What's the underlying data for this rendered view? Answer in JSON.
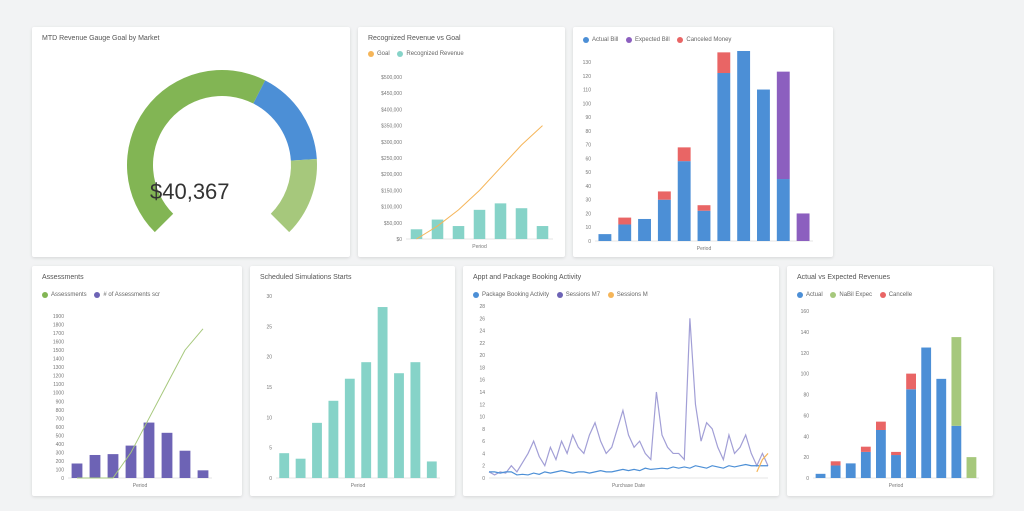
{
  "colors": {
    "green": "#82b554",
    "blue": "#4c8fd6",
    "teal": "#86d3c8",
    "purple": "#6d63b5",
    "lightpurple": "#a29fd6",
    "orange": "#f5b559",
    "red": "#e96565",
    "violet": "#8c5fbf",
    "lightgreen": "#a6c87c"
  },
  "chart_data": [
    {
      "id": "gauge",
      "type": "gauge",
      "title": "MTD Revenue Gauge Goal by Market",
      "value_text": "$40,367",
      "segments": [
        {
          "color_key": "green",
          "from": 0,
          "to": 0.6
        },
        {
          "color_key": "blue",
          "from": 0.6,
          "to": 0.82
        },
        {
          "color_key": "lightgreen",
          "from": 0.82,
          "to": 1.0
        }
      ]
    },
    {
      "id": "recognized",
      "type": "bar",
      "title": "Recognized Revenue vs Goal",
      "legend": [
        "Goal",
        "Recognized Revenue"
      ],
      "yticks": [
        "$500,000",
        "$450,000",
        "$400,000",
        "$350,000",
        "$300,000",
        "$250,000",
        "$200,000",
        "$150,000",
        "$100,000",
        "$50,000",
        "$0"
      ],
      "xlabel": "Period",
      "bars": [
        30,
        60,
        40,
        90,
        110,
        95,
        40
      ],
      "goal_line": [
        0,
        40,
        90,
        150,
        220,
        290,
        350
      ],
      "ymax": 500
    },
    {
      "id": "stacked_top",
      "type": "bar",
      "title": "",
      "legend": [
        "Actual Bill",
        "Expected Bill",
        "Canceled Money"
      ],
      "yticks": [
        "130",
        "120",
        "110",
        "100",
        "90",
        "80",
        "70",
        "60",
        "50",
        "40",
        "30",
        "20",
        "10",
        "0"
      ],
      "xlabel": "Period",
      "series": [
        {
          "name": "Actual Bill",
          "color_key": "blue",
          "values": [
            5,
            12,
            16,
            30,
            58,
            22,
            122,
            138,
            110,
            45,
            0
          ]
        },
        {
          "name": "Expected Bill",
          "color_key": "violet",
          "values": [
            0,
            0,
            0,
            0,
            0,
            0,
            0,
            0,
            0,
            78,
            20
          ]
        },
        {
          "name": "Canceled Money",
          "color_key": "red",
          "values": [
            0,
            5,
            0,
            6,
            10,
            4,
            15,
            0,
            0,
            0,
            0
          ]
        }
      ],
      "ymax": 130
    },
    {
      "id": "assessments",
      "type": "bar",
      "title": "Assessments",
      "legend": [
        "Assessments",
        "# of Assessments scr"
      ],
      "yticks": [
        "1900",
        "1800",
        "1700",
        "1600",
        "1500",
        "1400",
        "1300",
        "1200",
        "1100",
        "1000",
        "900",
        "800",
        "700",
        "600",
        "500",
        "400",
        "300",
        "200",
        "100",
        "0"
      ],
      "xlabel": "Period",
      "bars": [
        170,
        270,
        280,
        380,
        650,
        530,
        320,
        90
      ],
      "line": [
        0,
        0,
        0,
        300,
        700,
        1100,
        1500,
        1750
      ],
      "ymax": 1900
    },
    {
      "id": "simulations",
      "type": "bar",
      "title": "Scheduled Simulations Starts",
      "yticks": [
        "30",
        "25",
        "20",
        "15",
        "10",
        "5",
        "0"
      ],
      "xlabel": "Period",
      "bars": [
        4.5,
        3.5,
        10,
        14,
        18,
        21,
        31,
        19,
        21,
        3
      ],
      "ymax": 33
    },
    {
      "id": "activity",
      "type": "line",
      "title": "Appt and Package Booking Activity",
      "legend": [
        "Package Booking Activity",
        "Sessions M7",
        "Sessions M"
      ],
      "yticks": [
        "28",
        "26",
        "24",
        "22",
        "20",
        "18",
        "16",
        "14",
        "12",
        "10",
        "8",
        "6",
        "4",
        "2",
        "0"
      ],
      "xlabel": "Purchase Date",
      "series": [
        {
          "name": "Sessions M7",
          "color_key": "lightpurple",
          "values": [
            1,
            0.5,
            1,
            0.8,
            2,
            1,
            2.5,
            4,
            6,
            3.5,
            2,
            5,
            3,
            6,
            4,
            7,
            5,
            4,
            7,
            9,
            6,
            4,
            5,
            8,
            11,
            7,
            5,
            6,
            4,
            3,
            14,
            7,
            5,
            4,
            4,
            3,
            26,
            12,
            6,
            9,
            8,
            5,
            3,
            7,
            4,
            5,
            7,
            4,
            2,
            4,
            2
          ]
        },
        {
          "name": "Package Booking Activity",
          "color_key": "blue",
          "values": [
            1,
            1,
            0.8,
            1,
            1,
            0.5,
            0.6,
            0.5,
            0.8,
            0.6,
            1,
            0.8,
            1,
            1.2,
            1,
            0.8,
            1,
            1,
            0.8,
            1,
            1.2,
            1,
            1,
            1.2,
            1.4,
            1.2,
            1.4,
            1.2,
            1.6,
            1.4,
            1.5,
            1.6,
            1.5,
            1.8,
            1.6,
            1.8,
            1.6,
            2,
            1.8,
            1.6,
            2,
            1.8,
            1.6,
            2,
            1.8,
            2,
            2.2,
            2,
            2,
            2,
            2
          ]
        },
        {
          "name": "Sessions M",
          "color_key": "orange",
          "values": [
            null,
            null,
            null,
            null,
            null,
            null,
            null,
            null,
            null,
            null,
            null,
            null,
            null,
            null,
            null,
            null,
            null,
            null,
            null,
            null,
            null,
            null,
            null,
            null,
            null,
            null,
            null,
            null,
            null,
            null,
            null,
            null,
            null,
            null,
            null,
            null,
            null,
            null,
            null,
            null,
            null,
            null,
            null,
            null,
            null,
            null,
            null,
            null,
            1,
            3,
            4
          ]
        }
      ],
      "ymax": 28
    },
    {
      "id": "stacked_bottom",
      "type": "bar",
      "title": "Actual vs Expected Revenues",
      "legend": [
        "Actual",
        "NaBil Expec",
        "Cancelle"
      ],
      "yticks": [
        "160",
        "140",
        "120",
        "100",
        "80",
        "60",
        "40",
        "20",
        "0"
      ],
      "xlabel": "Period",
      "series": [
        {
          "name": "Actual",
          "color_key": "blue",
          "values": [
            4,
            12,
            14,
            25,
            46,
            22,
            85,
            125,
            95,
            50,
            0
          ]
        },
        {
          "name": "NaBil Expec",
          "color_key": "lightgreen",
          "values": [
            0,
            0,
            0,
            0,
            0,
            0,
            0,
            0,
            0,
            85,
            20
          ]
        },
        {
          "name": "Cancelle",
          "color_key": "red",
          "values": [
            0,
            4,
            0,
            5,
            8,
            3,
            15,
            0,
            0,
            0,
            0
          ]
        }
      ],
      "ymax": 160
    }
  ]
}
